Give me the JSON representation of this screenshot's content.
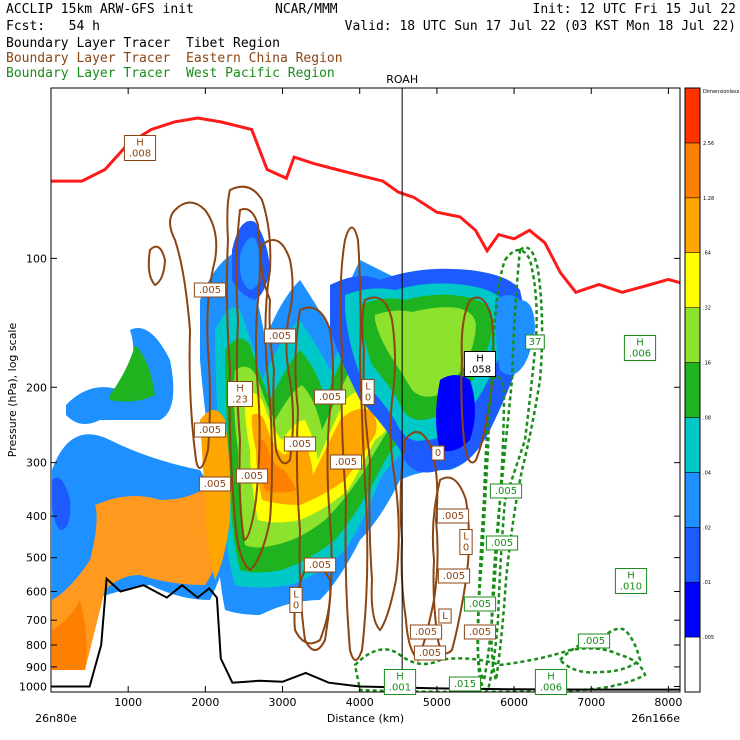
{
  "header": {
    "model": "ACCLIP 15km ARW-GFS init",
    "org": "NCAR/MMM",
    "init": "Init: 12 UTC Fri 15 Jul 22",
    "fcst": "Fcst:   54 h",
    "valid": "Valid: 18 UTC Sun 17 Jul 22 (03 KST Mon 18 Jul 22)"
  },
  "legend": [
    {
      "label": "Boundary Layer Tracer",
      "region": "Tibet Region",
      "color": "#000000"
    },
    {
      "label": "Boundary Layer Tracer",
      "region": "Eastern China Region",
      "color": "#8b4513"
    },
    {
      "label": "Boundary Layer Tracer",
      "region": "West Pacific Region",
      "color": "#1a8c1a"
    }
  ],
  "chart_data": {
    "type": "heatmap",
    "xlabel": "Distance (km)",
    "ylabel": "Pressure (hPa), log scale",
    "xlim": [
      0,
      8150
    ],
    "ylim": [
      1030,
      40
    ],
    "x_ticks": [
      1000,
      2000,
      3000,
      4000,
      5000,
      6000,
      7000,
      8000
    ],
    "y_ticks": [
      100,
      200,
      300,
      400,
      500,
      600,
      700,
      800,
      900,
      1000
    ],
    "left_endpoint": "26n80e",
    "right_endpoint": "26n166e",
    "vertical_marker": {
      "label": "ROAH",
      "x": 4550
    },
    "colorbar": {
      "title": "Dimensionless",
      "levels": [
        ".005",
        ".01",
        ".02",
        ".04",
        ".08",
        ".16",
        ".32",
        ".64",
        "1.28",
        "2.56"
      ],
      "colors": [
        "#ffffff",
        "#0000ff",
        "#1e5bff",
        "#1e90ff",
        "#00c8c8",
        "#1fb31f",
        "#8de22e",
        "#ffff00",
        "#ffa500",
        "#ff7f00",
        "#ff3300"
      ]
    },
    "tropopause": [
      [
        0,
        66
      ],
      [
        400,
        66
      ],
      [
        700,
        62
      ],
      [
        1000,
        54
      ],
      [
        1300,
        50
      ],
      [
        1600,
        48
      ],
      [
        1900,
        47
      ],
      [
        2200,
        48
      ],
      [
        2600,
        50
      ],
      [
        2800,
        62
      ],
      [
        3050,
        65
      ],
      [
        3150,
        58
      ],
      [
        3400,
        60
      ],
      [
        3700,
        62
      ],
      [
        4000,
        64
      ],
      [
        4300,
        66
      ],
      [
        4500,
        70
      ],
      [
        4700,
        72
      ],
      [
        5000,
        78
      ],
      [
        5300,
        80
      ],
      [
        5500,
        86
      ],
      [
        5650,
        96
      ],
      [
        5800,
        88
      ],
      [
        6000,
        90
      ],
      [
        6200,
        86
      ],
      [
        6400,
        92
      ],
      [
        6600,
        108
      ],
      [
        6800,
        120
      ],
      [
        7100,
        115
      ],
      [
        7400,
        120
      ],
      [
        7700,
        116
      ],
      [
        8000,
        112
      ],
      [
        8150,
        114
      ]
    ],
    "surface": [
      [
        0,
        1000
      ],
      [
        500,
        1000
      ],
      [
        650,
        800
      ],
      [
        720,
        560
      ],
      [
        900,
        600
      ],
      [
        1200,
        580
      ],
      [
        1500,
        620
      ],
      [
        1700,
        580
      ],
      [
        1900,
        620
      ],
      [
        2050,
        590
      ],
      [
        2150,
        620
      ],
      [
        2200,
        860
      ],
      [
        2350,
        980
      ],
      [
        2700,
        970
      ],
      [
        3000,
        975
      ],
      [
        3300,
        930
      ],
      [
        3600,
        980
      ],
      [
        4000,
        1000
      ],
      [
        5000,
        1010
      ],
      [
        6000,
        1015
      ],
      [
        7000,
        1017
      ],
      [
        8150,
        1017
      ]
    ],
    "labels": [
      {
        "text": "H\n.008",
        "x": 140,
        "y": 148,
        "color": "#8b4513"
      },
      {
        "text": ".005",
        "x": 210,
        "y": 290,
        "color": "#8b4513"
      },
      {
        "text": ".005",
        "x": 210,
        "y": 430,
        "color": "#8b4513"
      },
      {
        "text": ".005",
        "x": 215,
        "y": 484,
        "color": "#8b4513"
      },
      {
        "text": "H\n.23",
        "x": 240,
        "y": 394,
        "color": "#8b4513"
      },
      {
        "text": ".005",
        "x": 252,
        "y": 476,
        "color": "#8b4513"
      },
      {
        "text": ".005",
        "x": 280,
        "y": 336,
        "color": "#8b4513"
      },
      {
        "text": ".005",
        "x": 300,
        "y": 444,
        "color": "#8b4513"
      },
      {
        "text": ".005",
        "x": 330,
        "y": 397,
        "color": "#8b4513"
      },
      {
        "text": ".005",
        "x": 346,
        "y": 462,
        "color": "#8b4513"
      },
      {
        "text": ".005",
        "x": 320,
        "y": 565,
        "color": "#8b4513"
      },
      {
        "text": "L\n0",
        "x": 296,
        "y": 600,
        "color": "#8b4513"
      },
      {
        "text": "L\n0",
        "x": 368,
        "y": 392,
        "color": "#8b4513"
      },
      {
        "text": "0",
        "x": 438,
        "y": 453,
        "color": "#8b4513"
      },
      {
        "text": ".005",
        "x": 453,
        "y": 516,
        "color": "#8b4513"
      },
      {
        "text": "L\n0",
        "x": 466,
        "y": 542,
        "color": "#8b4513"
      },
      {
        "text": ".005",
        "x": 454,
        "y": 576,
        "color": "#8b4513"
      },
      {
        "text": "L",
        "x": 445,
        "y": 616,
        "color": "#8b4513"
      },
      {
        "text": ".005",
        "x": 426,
        "y": 632,
        "color": "#8b4513"
      },
      {
        "text": ".005",
        "x": 430,
        "y": 653,
        "color": "#8b4513"
      },
      {
        "text": ".005",
        "x": 480,
        "y": 632,
        "color": "#8b4513"
      },
      {
        "text": ".005",
        "x": 506,
        "y": 491,
        "color": "#1a8c1a"
      },
      {
        "text": ".005",
        "x": 502,
        "y": 543,
        "color": "#1a8c1a"
      },
      {
        "text": ".005",
        "x": 480,
        "y": 604,
        "color": "#1a8c1a"
      },
      {
        "text": "37",
        "x": 535,
        "y": 342,
        "color": "#1a8c1a"
      },
      {
        "text": "H\n.006",
        "x": 640,
        "y": 348,
        "color": "#1a8c1a"
      },
      {
        "text": "H\n.010",
        "x": 631,
        "y": 581,
        "color": "#1a8c1a"
      },
      {
        "text": ".005",
        "x": 594,
        "y": 641,
        "color": "#1a8c1a"
      },
      {
        "text": "H\n.006",
        "x": 551,
        "y": 682,
        "color": "#1a8c1a"
      },
      {
        "text": "H\n.001",
        "x": 400,
        "y": 682,
        "color": "#1a8c1a"
      },
      {
        "text": ".015",
        "x": 465,
        "y": 684,
        "color": "#1a8c1a"
      },
      {
        "text": "H\n.058",
        "x": 480,
        "y": 364,
        "color": "#000000"
      }
    ]
  }
}
